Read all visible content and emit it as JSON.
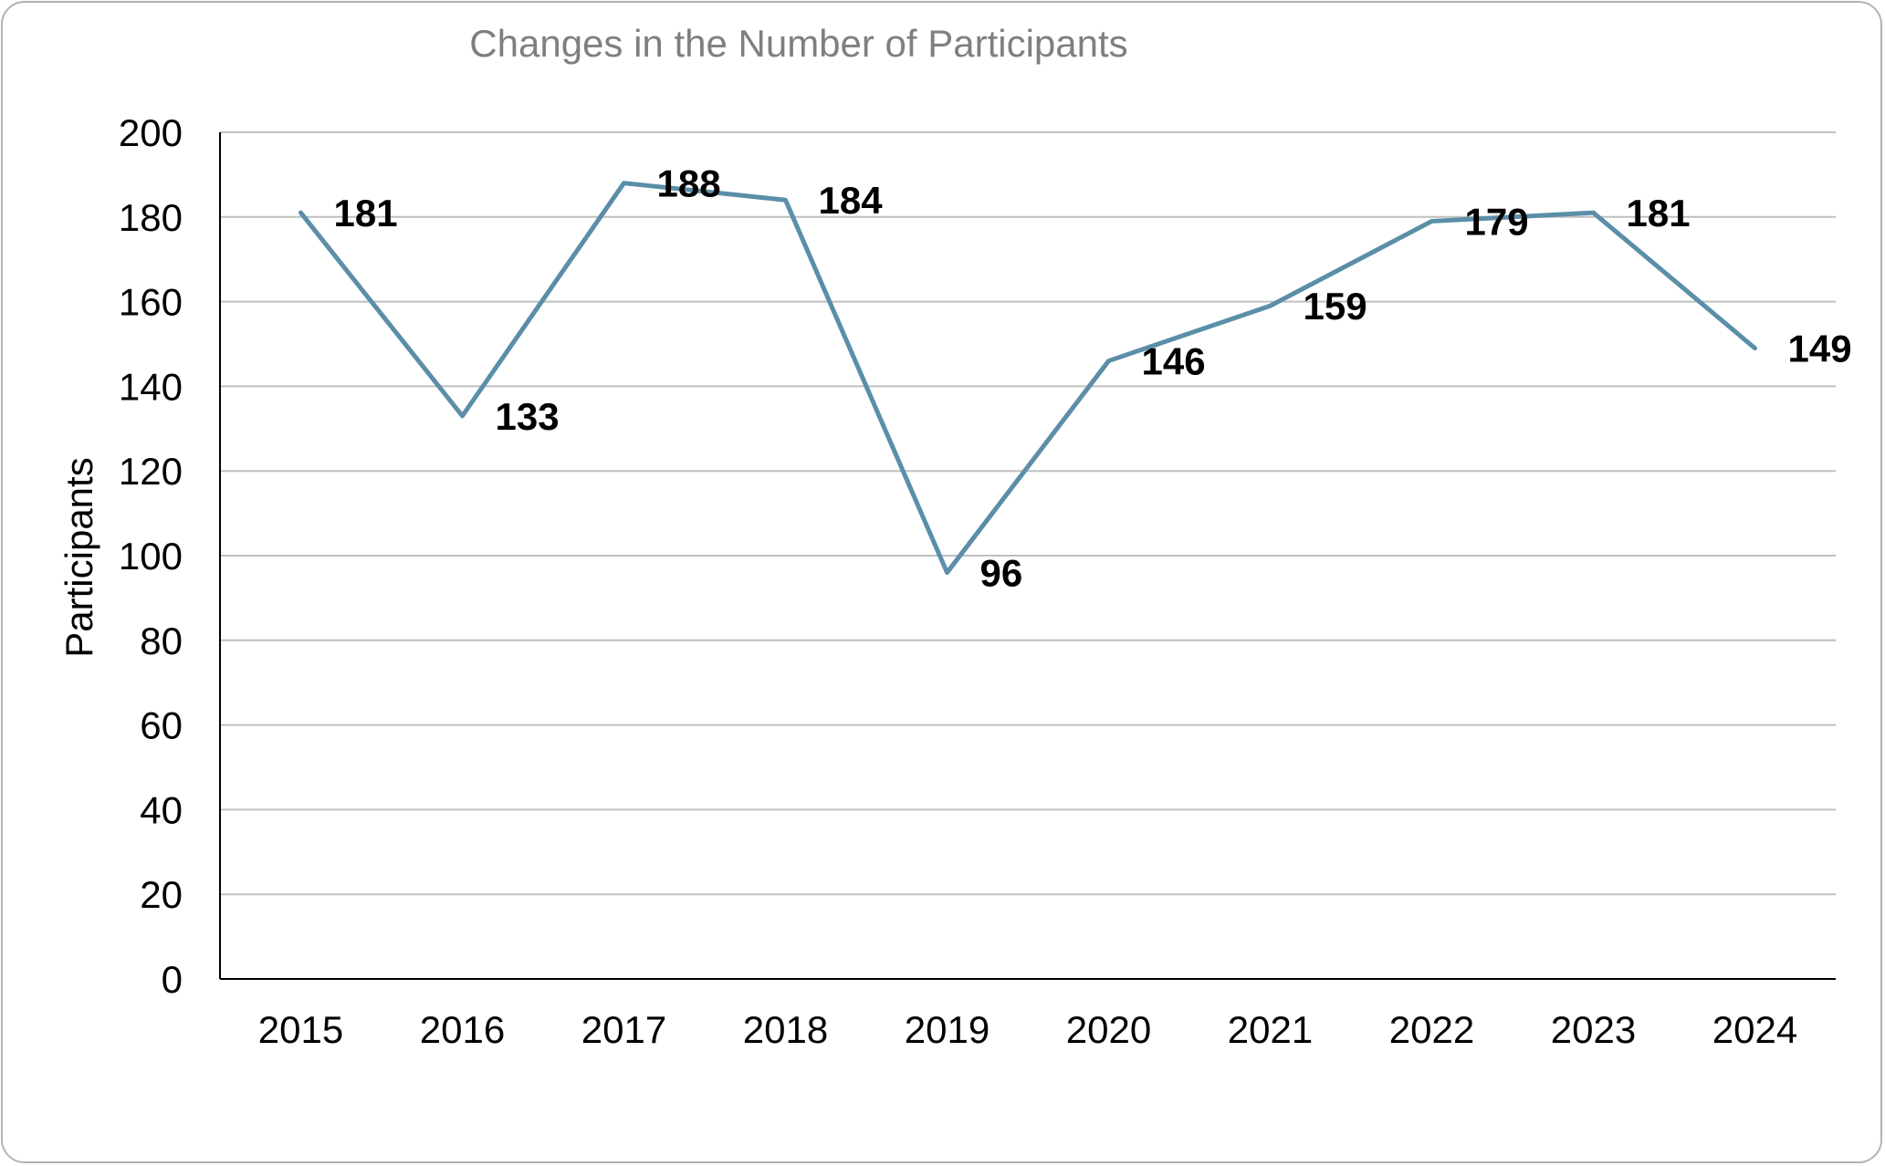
{
  "chart_data": {
    "type": "line",
    "title": "Changes in the Number of Participants",
    "xlabel": "",
    "ylabel": "Participants",
    "categories": [
      "2015",
      "2016",
      "2017",
      "2018",
      "2019",
      "2020",
      "2021",
      "2022",
      "2023",
      "2024"
    ],
    "series": [
      {
        "values": [
          181,
          133,
          188,
          184,
          96,
          146,
          159,
          179,
          181,
          149
        ],
        "color": "#5b8ea8",
        "data_labels": [
          "181",
          "133",
          "188",
          "184",
          "96",
          "146",
          "159",
          "179",
          "181",
          "149"
        ]
      }
    ],
    "ylim": [
      0,
      200
    ],
    "yticks": [
      "0",
      "20",
      "40",
      "60",
      "80",
      "100",
      "120",
      "140",
      "160",
      "180",
      "200"
    ],
    "grid": true,
    "gridline_color": "#bfbfbf",
    "legend": "none"
  }
}
